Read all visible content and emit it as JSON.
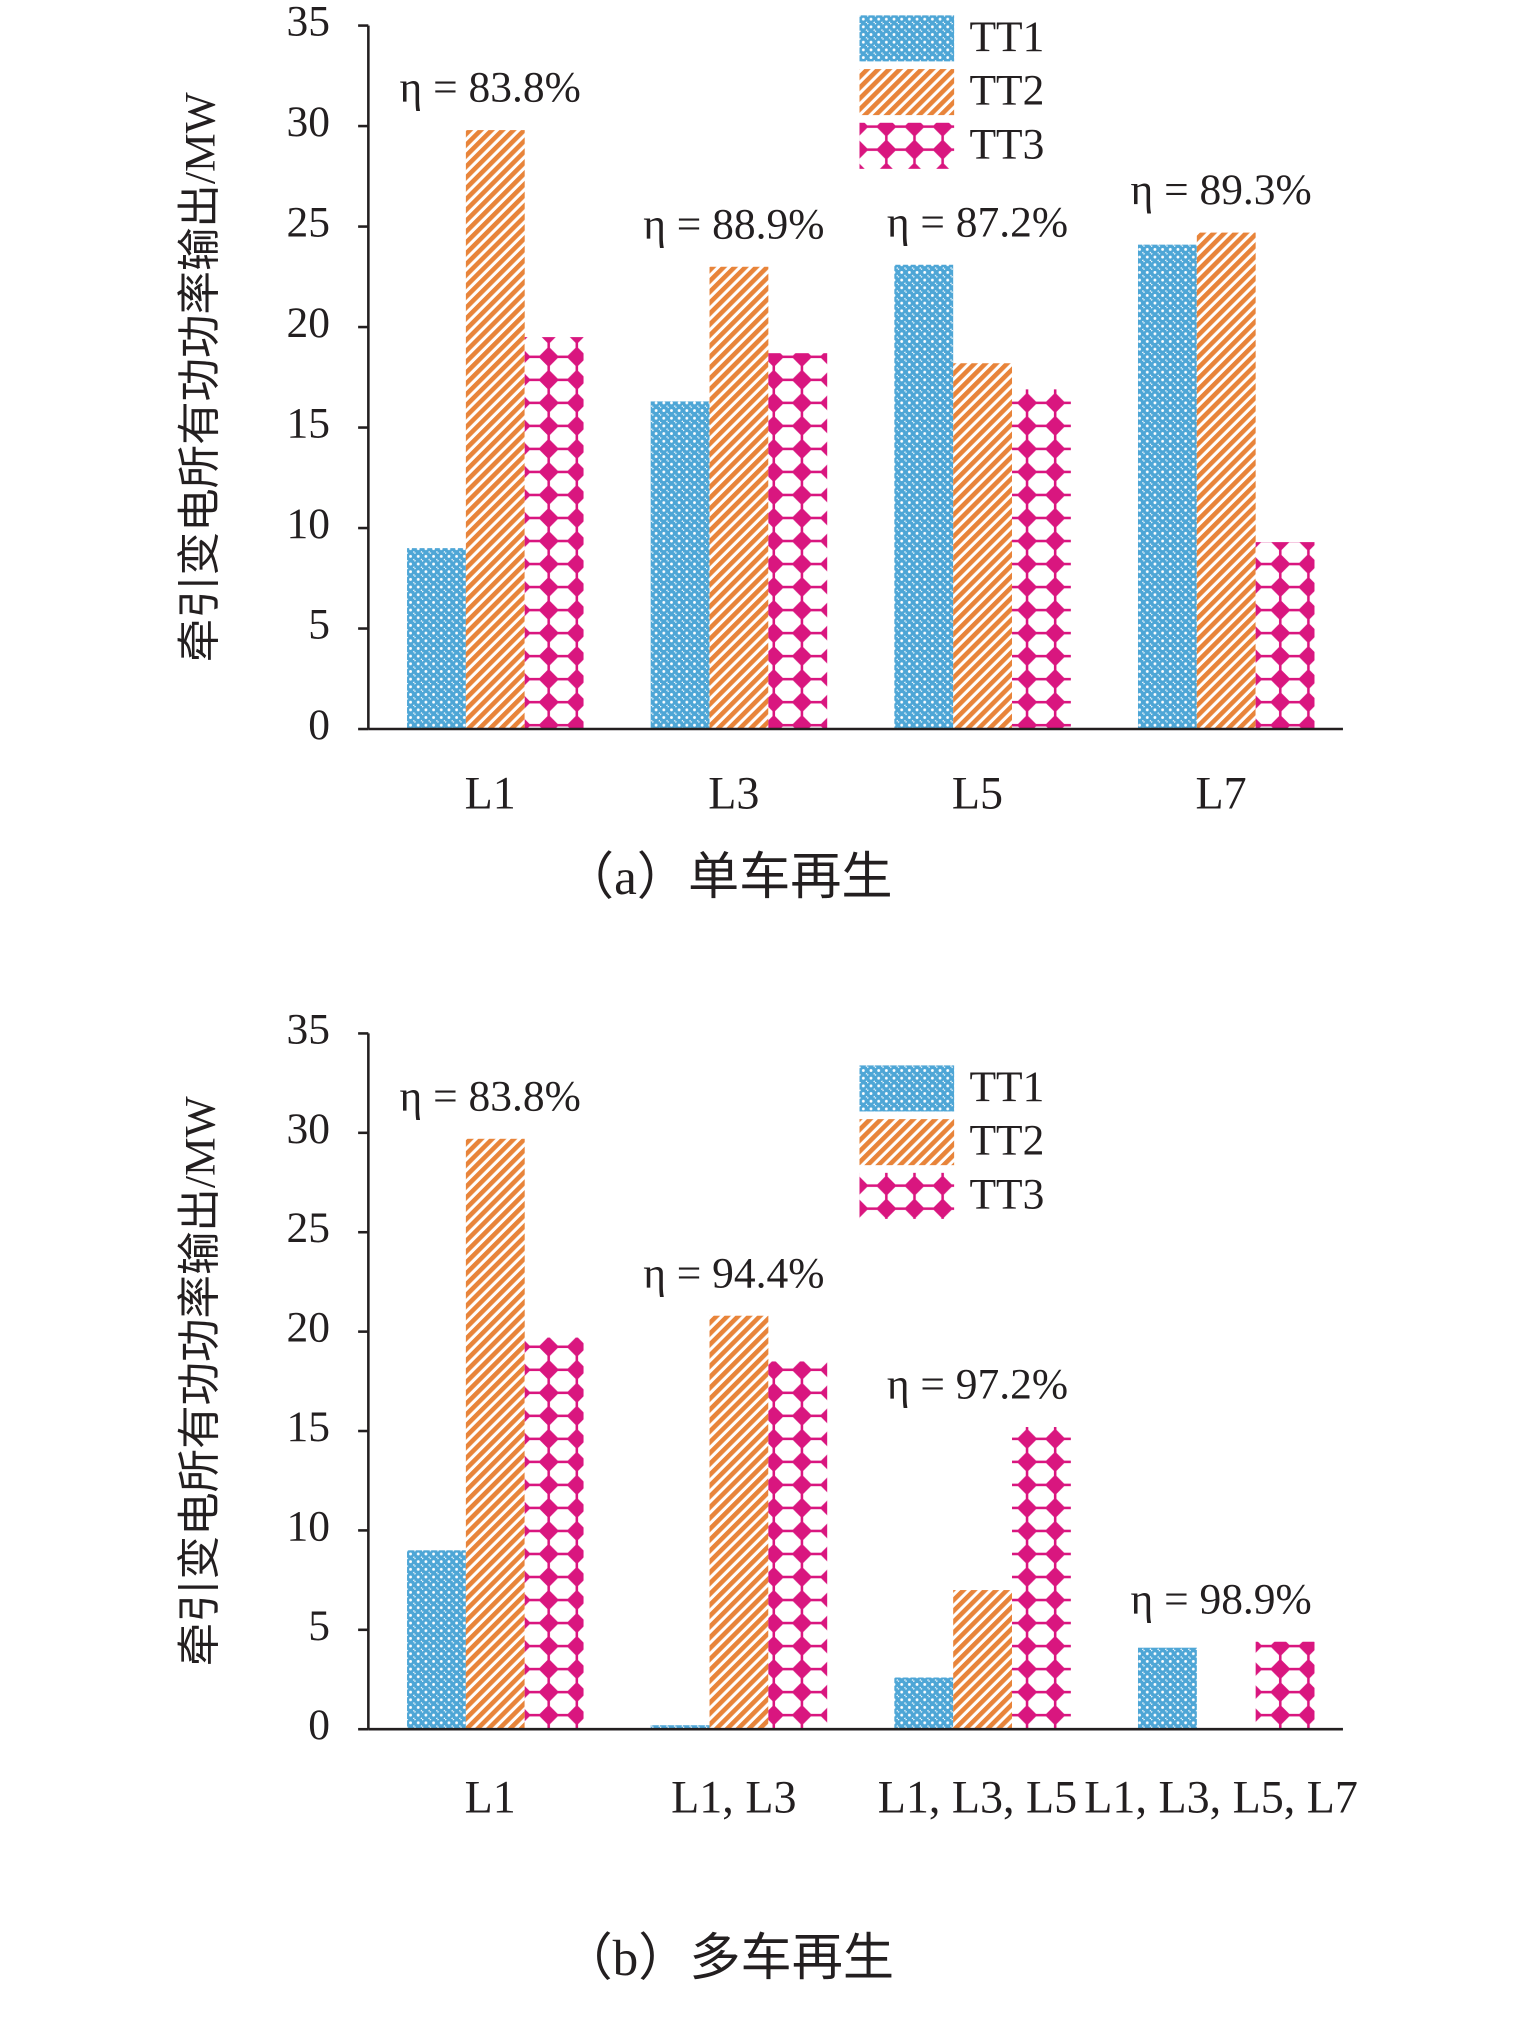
{
  "chart_data": [
    {
      "type": "bar",
      "caption": "（a）单车再生",
      "ylabel": "牵引变电所有功功率输出/MW",
      "categories": [
        "L1",
        "L3",
        "L5",
        "L7"
      ],
      "series": [
        {
          "name": "TT1",
          "color": "#4ea6d6",
          "pattern": "dots",
          "values": [
            9.0,
            16.3,
            23.1,
            24.1
          ]
        },
        {
          "name": "TT2",
          "color": "#e8843a",
          "pattern": "stripes",
          "values": [
            29.8,
            23.0,
            18.2,
            24.7
          ]
        },
        {
          "name": "TT3",
          "color": "#d9167f",
          "pattern": "diamonds",
          "values": [
            19.5,
            18.7,
            16.9,
            9.3
          ]
        }
      ],
      "annotations": [
        "η = 83.8%",
        "η = 88.9%",
        "η = 87.2%",
        "η = 89.3%"
      ],
      "ylim": [
        0,
        35
      ],
      "yticks": [
        0,
        5,
        10,
        15,
        20,
        25,
        30,
        35
      ],
      "legend": "top"
    },
    {
      "type": "bar",
      "caption": "（b）多车再生",
      "ylabel": "牵引变电所有功功率输出/MW",
      "categories": [
        "L1",
        "L1, L3",
        "L1, L3, L5",
        "L1, L3, L5, L7"
      ],
      "series": [
        {
          "name": "TT1",
          "color": "#4ea6d6",
          "pattern": "dots",
          "values": [
            9.0,
            0.2,
            2.6,
            4.1
          ]
        },
        {
          "name": "TT2",
          "color": "#e8843a",
          "pattern": "stripes",
          "values": [
            29.7,
            20.8,
            7.0,
            0
          ]
        },
        {
          "name": "TT3",
          "color": "#d9167f",
          "pattern": "diamonds",
          "values": [
            19.7,
            18.5,
            15.2,
            4.4
          ]
        }
      ],
      "annotations": [
        "η = 83.8%",
        "η = 94.4%",
        "η = 97.2%",
        "η = 98.9%"
      ],
      "ylim": [
        0,
        35
      ],
      "yticks": [
        0,
        5,
        10,
        15,
        20,
        25,
        30,
        35
      ],
      "legend": "top"
    }
  ]
}
